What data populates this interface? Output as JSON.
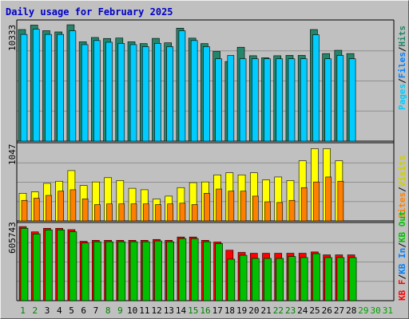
{
  "title": "Daily usage for February 2025",
  "colors": {
    "hits": "#24856a",
    "files": "#00ccff",
    "pages": "#00ccff",
    "visits": "#ffff00",
    "sites": "#ff8000",
    "kbf": "#ff0000",
    "kbin": "#00c0ff",
    "kbout": "#00c000",
    "sep": "#000000",
    "day_weekday": "#000000",
    "day_weekend": "#007f00",
    "day_empty": "#00a000"
  },
  "legends": {
    "top": [
      {
        "text": "Pages",
        "color": "#00ccff"
      },
      {
        "text": "/",
        "color": "#000000"
      },
      {
        "text": "Files",
        "color": "#0080ff"
      },
      {
        "text": "/",
        "color": "#000000"
      },
      {
        "text": "Hits",
        "color": "#24856a"
      }
    ],
    "middle": [
      {
        "text": "Sites",
        "color": "#ff8000"
      },
      {
        "text": "/",
        "color": "#000000"
      },
      {
        "text": "Visits",
        "color": "#d0d000"
      }
    ],
    "bottom": [
      {
        "text": "KB F",
        "color": "#ff0000"
      },
      {
        "text": "/",
        "color": "#000000"
      },
      {
        "text": "KB In",
        "color": "#0080ff"
      },
      {
        "text": "/",
        "color": "#000000"
      },
      {
        "text": "KB Out",
        "color": "#00c000"
      }
    ]
  },
  "chart_data": [
    {
      "type": "bar",
      "name": "hits-files-pages",
      "ymax_label": "10333",
      "ylim": [
        0,
        10333
      ],
      "categories": [
        "1",
        "2",
        "3",
        "4",
        "5",
        "6",
        "7",
        "8",
        "9",
        "10",
        "11",
        "12",
        "13",
        "14",
        "15",
        "16",
        "17",
        "18",
        "19",
        "20",
        "21",
        "22",
        "23",
        "24",
        "25",
        "26",
        "27",
        "28",
        "29",
        "30",
        "31"
      ],
      "series": [
        {
          "name": "Hits",
          "values": [
            9840,
            10230,
            9740,
            9630,
            10260,
            8760,
            9140,
            9050,
            9090,
            8760,
            8600,
            9060,
            8670,
            9960,
            9080,
            8600,
            7910,
            7020,
            8280,
            7530,
            7350,
            7530,
            7560,
            7560,
            9840,
            7720,
            8010,
            7720,
            null,
            null,
            null
          ]
        },
        {
          "name": "Files",
          "values": [
            9410,
            9870,
            9410,
            9410,
            9730,
            8510,
            8870,
            8720,
            8620,
            8510,
            8330,
            8620,
            8330,
            9730,
            8870,
            8330,
            7260,
            7560,
            7260,
            7260,
            7260,
            7260,
            7260,
            7260,
            9380,
            7260,
            7560,
            7260,
            null,
            null,
            null
          ]
        },
        {
          "name": "Pages",
          "values": [
            9410,
            9870,
            9410,
            9410,
            9730,
            8510,
            8870,
            8720,
            8620,
            8510,
            8330,
            8620,
            8330,
            9730,
            8870,
            8330,
            7260,
            7560,
            7260,
            7260,
            7260,
            7260,
            7260,
            7260,
            9380,
            7260,
            7560,
            7260,
            null,
            null,
            null
          ]
        }
      ]
    },
    {
      "type": "bar",
      "name": "visits-sites",
      "ymax_label": "1047",
      "ylim": [
        0,
        1047
      ],
      "categories": [
        "1",
        "2",
        "3",
        "4",
        "5",
        "6",
        "7",
        "8",
        "9",
        "10",
        "11",
        "12",
        "13",
        "14",
        "15",
        "16",
        "17",
        "18",
        "19",
        "20",
        "21",
        "22",
        "23",
        "24",
        "25",
        "26",
        "27",
        "28",
        "29",
        "30",
        "31"
      ],
      "series": [
        {
          "name": "Visits",
          "values": [
            390,
            410,
            530,
            560,
            710,
            500,
            550,
            610,
            570,
            460,
            440,
            310,
            350,
            470,
            540,
            550,
            650,
            680,
            650,
            680,
            580,
            620,
            570,
            850,
            1020,
            1020,
            850,
            null,
            null,
            null,
            null
          ]
        },
        {
          "name": "Sites",
          "values": [
            290,
            320,
            360,
            420,
            440,
            310,
            230,
            240,
            240,
            240,
            240,
            230,
            240,
            250,
            230,
            390,
            450,
            420,
            420,
            350,
            270,
            260,
            290,
            470,
            550,
            620,
            560,
            null,
            null,
            null,
            null
          ]
        }
      ]
    },
    {
      "type": "bar",
      "name": "kbf-kbin-kbout",
      "ymax_label": "605743",
      "ylim": [
        0,
        605743
      ],
      "categories": [
        "1",
        "2",
        "3",
        "4",
        "5",
        "6",
        "7",
        "8",
        "9",
        "10",
        "11",
        "12",
        "13",
        "14",
        "15",
        "16",
        "17",
        "18",
        "19",
        "20",
        "21",
        "22",
        "23",
        "24",
        "25",
        "26",
        "27",
        "28",
        "29",
        "30",
        "31"
      ],
      "series": [
        {
          "name": "KB F",
          "values": [
            605000,
            562000,
            591000,
            591000,
            580000,
            485000,
            493000,
            493000,
            493000,
            493000,
            493000,
            500000,
            493000,
            520000,
            520000,
            493000,
            479000,
            412000,
            394000,
            387000,
            387000,
            387000,
            387000,
            387000,
            398000,
            374000,
            374000,
            374000,
            null,
            null,
            null
          ]
        },
        {
          "name": "KB Out",
          "values": [
            591000,
            545000,
            578000,
            578000,
            563000,
            471000,
            481000,
            481000,
            481000,
            481000,
            481000,
            488000,
            481000,
            507000,
            507000,
            481000,
            466000,
            339000,
            371000,
            345000,
            345000,
            345000,
            361000,
            352000,
            384000,
            352000,
            352000,
            352000,
            null,
            null,
            null
          ]
        }
      ]
    }
  ],
  "xaxis_labels": [
    "1",
    "2",
    "3",
    "4",
    "5",
    "6",
    "7",
    "8",
    "9",
    "10",
    "11",
    "12",
    "13",
    "14",
    "15",
    "16",
    "17",
    "18",
    "19",
    "20",
    "21",
    "22",
    "23",
    "24",
    "25",
    "26",
    "27",
    "28",
    "29",
    "30",
    "31"
  ],
  "weekend_days": [
    1,
    2,
    8,
    9,
    15,
    16,
    22,
    23
  ],
  "empty_days": [
    29,
    30,
    31
  ]
}
